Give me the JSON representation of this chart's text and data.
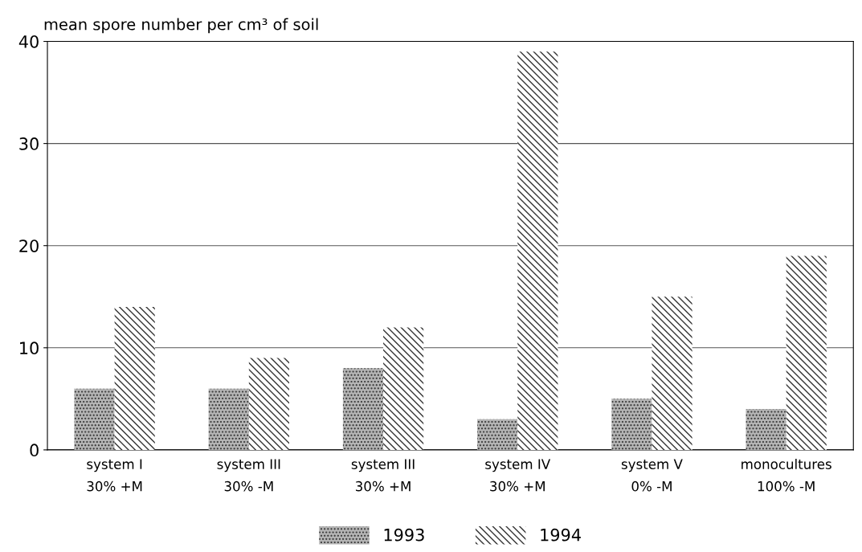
{
  "chart_data": {
    "type": "bar",
    "ylabel": "mean spore number per cm³ of soil",
    "categories": [
      "system I\n30% +M",
      "system III\n30% -M",
      "system III\n30% +M",
      "system IV\n30% +M",
      "system V\n0% -M",
      "monocultures\n100% -M"
    ],
    "series": [
      {
        "name": "1993",
        "color": "#b4b4b4",
        "values": [
          6,
          6,
          8,
          3,
          5,
          4
        ]
      },
      {
        "name": "1994",
        "color": "#ffffff",
        "values": [
          14,
          9,
          12,
          39,
          15,
          19
        ]
      }
    ],
    "ylim": [
      0,
      40
    ],
    "yticks": [
      0,
      10,
      20,
      30,
      40
    ],
    "grid": "y",
    "legend": "bottom"
  }
}
